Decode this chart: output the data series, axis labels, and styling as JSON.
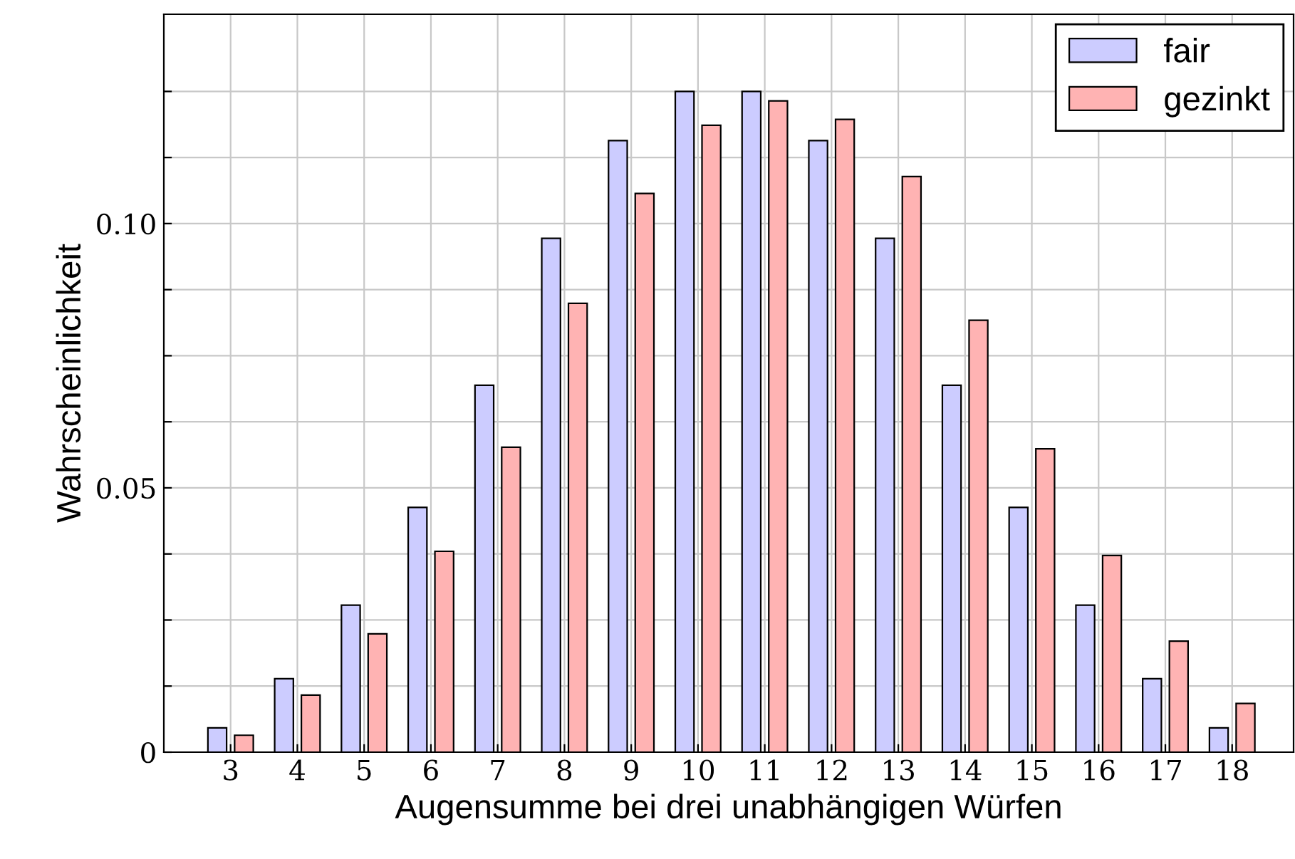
{
  "chart_data": {
    "type": "bar",
    "xlabel": "Augensumme bei drei unabhängigen Würfen",
    "ylabel": "Wahrscheinlichkeit",
    "x": [
      3,
      4,
      5,
      6,
      7,
      8,
      9,
      10,
      11,
      12,
      13,
      14,
      15,
      16,
      17,
      18
    ],
    "series": [
      {
        "name": "fair",
        "color": "#ccccff",
        "values": [
          0.0046,
          0.0139,
          0.0278,
          0.0463,
          0.0694,
          0.0972,
          0.1157,
          0.125,
          0.125,
          0.1157,
          0.0972,
          0.0694,
          0.0463,
          0.0278,
          0.0139,
          0.0046
        ]
      },
      {
        "name": "gezinkt",
        "color": "#ffb3b3",
        "values": [
          0.0032,
          0.0108,
          0.0224,
          0.038,
          0.0577,
          0.0849,
          0.1057,
          0.1186,
          0.1232,
          0.1197,
          0.1089,
          0.0817,
          0.0574,
          0.0372,
          0.021,
          0.0092
        ]
      }
    ],
    "xlim": [
      2,
      18.92
    ],
    "ylim": [
      0,
      0.1396
    ],
    "xticks": [
      3,
      4,
      5,
      6,
      7,
      8,
      9,
      10,
      11,
      12,
      13,
      14,
      15,
      16,
      17,
      18
    ],
    "yticks": [
      0,
      {
        "value": 0.0125,
        "label": null
      },
      {
        "value": 0.025,
        "label": null
      },
      {
        "value": 0.0375,
        "label": null
      },
      {
        "value": 0.05,
        "label": "0.05"
      },
      {
        "value": 0.0625,
        "label": null
      },
      {
        "value": 0.075,
        "label": null
      },
      {
        "value": 0.0875,
        "label": null
      },
      {
        "value": 0.1,
        "label": "0.10"
      },
      {
        "value": 0.1125,
        "label": null
      },
      {
        "value": 0.125,
        "label": null
      }
    ],
    "grid": true,
    "legend": "top right"
  }
}
